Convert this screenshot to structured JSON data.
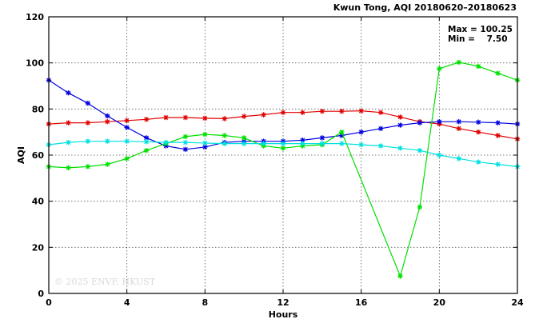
{
  "chart_data": {
    "type": "line",
    "title": "Kwun Tong, AQI 20180620–20180623",
    "stats": {
      "max_label": "Max = 100.25",
      "min_label": "Min =    7.50"
    },
    "watermark": "© 2025  ENVF, HKUST",
    "xlabel": "Hours",
    "ylabel": "AQI",
    "xlim": [
      0,
      24
    ],
    "ylim": [
      0,
      120
    ],
    "xticks": [
      0,
      4,
      8,
      12,
      16,
      20,
      24
    ],
    "yticks": [
      0,
      20,
      40,
      60,
      80,
      100,
      120
    ],
    "grid": true,
    "marker": "asterisk",
    "x": [
      0,
      1,
      2,
      3,
      4,
      5,
      6,
      7,
      8,
      9,
      10,
      11,
      12,
      13,
      14,
      15,
      16,
      17,
      18,
      19,
      20,
      21,
      22,
      23,
      24
    ],
    "series": [
      {
        "color": "#e00000",
        "values": [
          73.5,
          74,
          74,
          74.5,
          75,
          75.5,
          76.3,
          76.3,
          76,
          75.8,
          76.8,
          77.5,
          78.5,
          78.5,
          79,
          79,
          79.2,
          78.5,
          76.5,
          74.5,
          73.5,
          71.5,
          70,
          68.5,
          67
        ]
      },
      {
        "color": "#0000e0",
        "values": [
          92.5,
          87,
          82.5,
          77,
          72,
          67.5,
          64,
          62.5,
          63.5,
          65.5,
          66,
          66,
          66,
          66.5,
          67.5,
          68.5,
          70,
          71.5,
          73,
          74,
          74.5,
          74.5,
          74.3,
          74,
          73.5
        ]
      },
      {
        "color": "#00e000",
        "values": [
          55,
          54.5,
          55,
          56,
          58.5,
          62,
          65,
          68,
          69,
          68.5,
          67.5,
          64,
          63,
          64,
          64.5,
          70,
          null,
          null,
          7.5,
          37.5,
          97.5,
          100.25,
          98.5,
          95.5,
          92.5
        ]
      },
      {
        "color": "#00e0e0",
        "values": [
          64.5,
          65.5,
          66,
          66,
          66,
          65.8,
          65.5,
          65.5,
          65.2,
          65,
          65,
          65,
          65,
          65,
          65,
          65,
          64.5,
          64,
          63,
          62,
          60,
          58.5,
          57,
          56,
          55
        ]
      }
    ]
  }
}
